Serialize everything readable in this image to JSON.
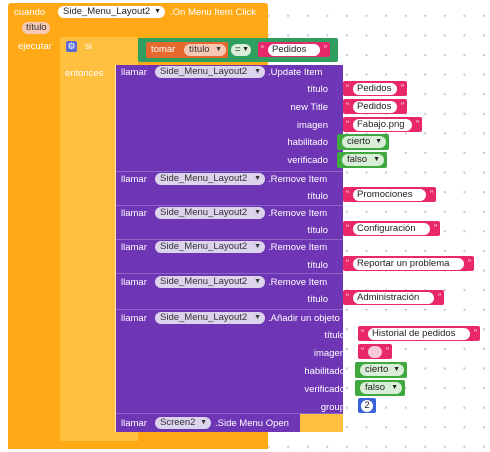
{
  "event": {
    "when": "cuando",
    "component": "Side_Menu_Layout2",
    "event_name": ".On Menu Item Click",
    "param": "título",
    "do": "ejecutar"
  },
  "if_block": {
    "if": "si",
    "then": "entonces",
    "condition": {
      "get": "tomar",
      "var": "título",
      "op": "=",
      "value": "Pedidos"
    }
  },
  "call": "llamar",
  "update_item": {
    "component": "Side_Menu_Layout2",
    "method": ".Update Item",
    "args": [
      {
        "label": "título",
        "type": "text",
        "value": "Pedidos"
      },
      {
        "label": "new Title",
        "type": "text",
        "value": "Pedidos"
      },
      {
        "label": "imagen",
        "type": "text",
        "value": "Fabajo.png"
      },
      {
        "label": "habilitado",
        "type": "bool",
        "value": "cierto"
      },
      {
        "label": "verificado",
        "type": "bool",
        "value": "falso"
      }
    ]
  },
  "remove_items": [
    {
      "component": "Side_Menu_Layout2",
      "method": ".Remove Item",
      "arg_label": "título",
      "value": "Promociones"
    },
    {
      "component": "Side_Menu_Layout2",
      "method": ".Remove Item",
      "arg_label": "título",
      "value": "Configuración"
    },
    {
      "component": "Side_Menu_Layout2",
      "method": ".Remove Item",
      "arg_label": "título",
      "value": "Reportar un problema"
    },
    {
      "component": "Side_Menu_Layout2",
      "method": ".Remove Item",
      "arg_label": "título",
      "value": "Administración"
    }
  ],
  "add_item": {
    "component": "Side_Menu_Layout2",
    "method": ".Añadir un objeto",
    "args": [
      {
        "label": "título",
        "type": "text",
        "value": "Historial de pedidos"
      },
      {
        "label": "imagen",
        "type": "text",
        "value": ""
      },
      {
        "label": "habilitado",
        "type": "bool",
        "value": "cierto"
      },
      {
        "label": "verificado",
        "type": "bool",
        "value": "falso"
      },
      {
        "label": "group",
        "type": "number",
        "value": "2"
      }
    ]
  },
  "open_menu": {
    "component": "Screen2",
    "method": ".Side Menu Open"
  },
  "colors": {
    "event": "#FFA916",
    "control": "#FFBF3F",
    "procedure": "#6E35B5",
    "text": "#E8286B",
    "logic": "#3FA83F",
    "math": "#3B63D9",
    "compare": "#2E9F5E"
  }
}
